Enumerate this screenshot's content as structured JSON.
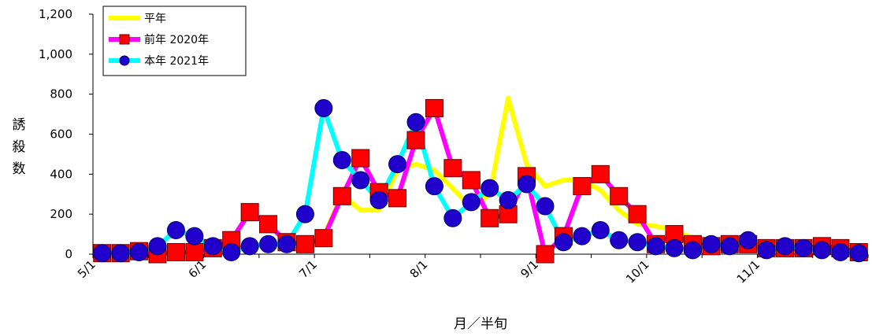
{
  "chart_data": {
    "type": "line",
    "title": "",
    "xlabel": "月／半旬",
    "ylabel": "誘殺数",
    "ylim": [
      0,
      1200
    ],
    "yticks": [
      "0",
      "200",
      "400",
      "600",
      "800",
      "1,000",
      "1,200"
    ],
    "xtick_labels": [
      "5/1",
      "6/1",
      "7/1",
      "8/1",
      "9/1",
      "10/1",
      "11/1"
    ],
    "xtick_positions": [
      1,
      7,
      13,
      19,
      25,
      31,
      37
    ],
    "x": [
      1,
      2,
      3,
      4,
      5,
      6,
      7,
      8,
      9,
      10,
      11,
      12,
      13,
      14,
      15,
      16,
      17,
      18,
      19,
      20,
      21,
      22,
      23,
      24,
      25,
      26,
      27,
      28,
      29,
      30,
      31,
      32,
      33,
      34,
      35,
      36,
      37,
      38,
      39,
      40,
      41,
      42
    ],
    "grid": false,
    "legend_position": "top-left",
    "series": [
      {
        "name": "平年",
        "color": "#ffff00",
        "marker": "none",
        "values": [
          5,
          8,
          15,
          25,
          35,
          40,
          35,
          30,
          40,
          45,
          50,
          55,
          90,
          300,
          220,
          220,
          420,
          450,
          420,
          330,
          230,
          300,
          780,
          450,
          340,
          370,
          370,
          320,
          220,
          150,
          140,
          120,
          80,
          70,
          50,
          40,
          30,
          25,
          20,
          15,
          10,
          8
        ]
      },
      {
        "name": "前年 2020年",
        "color": "#ff00ff",
        "marker": "square",
        "marker_color": "#ff0000",
        "values": [
          5,
          5,
          15,
          0,
          10,
          10,
          30,
          70,
          210,
          150,
          60,
          50,
          80,
          290,
          480,
          310,
          280,
          570,
          730,
          430,
          370,
          180,
          200,
          390,
          0,
          90,
          340,
          400,
          290,
          200,
          50,
          100,
          50,
          40,
          50,
          50,
          30,
          30,
          30,
          40,
          30,
          10
        ]
      },
      {
        "name": "本年 2021年",
        "color": "#00ffff",
        "marker": "circle",
        "marker_color": "#2200cc",
        "values": [
          5,
          5,
          10,
          40,
          120,
          90,
          40,
          10,
          40,
          50,
          50,
          200,
          730,
          470,
          370,
          270,
          450,
          660,
          340,
          180,
          260,
          330,
          270,
          350,
          240,
          60,
          90,
          120,
          70,
          60,
          40,
          30,
          20,
          50,
          40,
          70,
          20,
          40,
          30,
          20,
          10,
          5
        ]
      }
    ]
  }
}
